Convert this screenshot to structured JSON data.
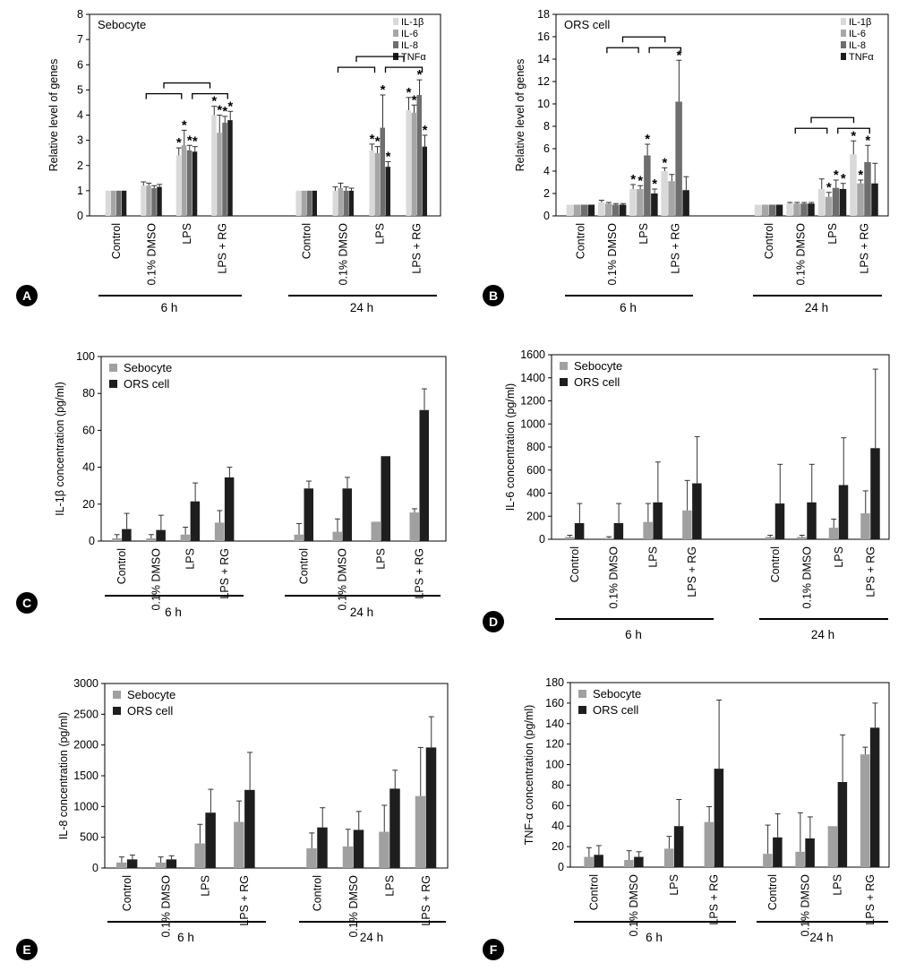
{
  "figure_colors": {
    "axis": "#000000",
    "panel_circle": "#000000",
    "panel_letter": "#ffffff"
  },
  "categories": [
    "Control",
    "0.1% DMSO",
    "LPS",
    "LPS + RG"
  ],
  "time_groups": [
    "6 h",
    "24 h"
  ],
  "chart_data": [
    {
      "panel": "A",
      "type": "bar",
      "title": "Sebocyte",
      "ylabel": "Relative level of genes",
      "ylim": [
        0,
        8
      ],
      "yticks": [
        0,
        1,
        2,
        3,
        4,
        5,
        6,
        7,
        8
      ],
      "tick_labels": [
        "0",
        "1",
        "2",
        "3",
        "4",
        "5",
        "6",
        "7",
        "8"
      ],
      "legend": [
        "IL-1β",
        "IL-6",
        "IL-8",
        "TNFα"
      ],
      "legend_position": "top-right",
      "colors": [
        "#d9d9d9",
        "#a6a6a6",
        "#6e6e6e",
        "#1e1e1e"
      ],
      "categories": [
        "Control",
        "0.1% DMSO",
        "LPS",
        "LPS + RG"
      ],
      "groups": [
        "6 h",
        "24 h"
      ],
      "series": [
        {
          "name": "IL-1β",
          "values": [
            [
              1.0,
              1.2,
              2.4,
              4.0
            ],
            [
              1.0,
              1.0,
              2.6,
              4.2
            ]
          ],
          "errors": [
            [
              0,
              0.15,
              0.3,
              0.35
            ],
            [
              0,
              0.15,
              0.25,
              0.5
            ]
          ],
          "star": [
            [
              false,
              false,
              true,
              true
            ],
            [
              false,
              false,
              true,
              true
            ]
          ]
        },
        {
          "name": "IL-6",
          "values": [
            [
              1.0,
              1.2,
              2.8,
              3.3
            ],
            [
              1.0,
              1.1,
              2.5,
              4.1
            ]
          ],
          "errors": [
            [
              0,
              0.1,
              0.6,
              0.7
            ],
            [
              0,
              0.2,
              0.25,
              0.3
            ]
          ],
          "star": [
            [
              false,
              false,
              true,
              true
            ],
            [
              false,
              false,
              true,
              true
            ]
          ]
        },
        {
          "name": "IL-8",
          "values": [
            [
              1.0,
              1.1,
              2.6,
              3.7
            ],
            [
              1.0,
              1.0,
              3.5,
              4.8
            ]
          ],
          "errors": [
            [
              0,
              0.1,
              0.2,
              0.25
            ],
            [
              0,
              0.15,
              1.3,
              0.6
            ]
          ],
          "star": [
            [
              false,
              false,
              true,
              true
            ],
            [
              false,
              false,
              true,
              true
            ]
          ]
        },
        {
          "name": "TNFα",
          "values": [
            [
              1.0,
              1.15,
              2.55,
              3.8
            ],
            [
              1.0,
              1.0,
              1.95,
              2.75
            ]
          ],
          "errors": [
            [
              0,
              0.1,
              0.2,
              0.35
            ],
            [
              0,
              0.1,
              0.2,
              0.45
            ]
          ],
          "star": [
            [
              false,
              false,
              true,
              true
            ],
            [
              false,
              false,
              true,
              true
            ]
          ]
        }
      ],
      "brackets": true
    },
    {
      "panel": "B",
      "type": "bar",
      "title": "ORS cell",
      "ylabel": "Relative level of genes",
      "ylim": [
        0,
        18
      ],
      "yticks": [
        0,
        2,
        4,
        6,
        8,
        10,
        12,
        14,
        16,
        18
      ],
      "tick_labels": [
        "0",
        "2",
        "4",
        "6",
        "8",
        "10",
        "12",
        "14",
        "16",
        "18"
      ],
      "legend": [
        "IL-1β",
        "IL-6",
        "IL-8",
        "TNFα"
      ],
      "legend_position": "top-right",
      "colors": [
        "#d9d9d9",
        "#a6a6a6",
        "#6e6e6e",
        "#1e1e1e"
      ],
      "categories": [
        "Control",
        "0.1% DMSO",
        "LPS",
        "LPS + RG"
      ],
      "groups": [
        "6 h",
        "24 h"
      ],
      "series": [
        {
          "name": "IL-1β",
          "values": [
            [
              1.0,
              1.2,
              2.4,
              4.0
            ],
            [
              1.0,
              1.1,
              2.4,
              5.5
            ]
          ],
          "errors": [
            [
              0,
              0.2,
              0.4,
              0.3
            ],
            [
              0,
              0.1,
              0.9,
              1.2
            ]
          ],
          "star": [
            [
              false,
              false,
              true,
              true
            ],
            [
              false,
              false,
              false,
              true
            ]
          ]
        },
        {
          "name": "IL-6",
          "values": [
            [
              1.0,
              1.1,
              2.4,
              3.1
            ],
            [
              1.0,
              1.1,
              1.7,
              2.9
            ]
          ],
          "errors": [
            [
              0,
              0.1,
              0.3,
              0.6
            ],
            [
              0,
              0.1,
              0.4,
              0.3
            ]
          ],
          "star": [
            [
              false,
              false,
              true,
              false
            ],
            [
              false,
              false,
              true,
              true
            ]
          ]
        },
        {
          "name": "IL-8",
          "values": [
            [
              1.0,
              1.0,
              5.4,
              10.2
            ],
            [
              1.0,
              1.1,
              2.5,
              4.8
            ]
          ],
          "errors": [
            [
              0,
              0.1,
              1.0,
              3.7
            ],
            [
              0,
              0.1,
              0.7,
              1.5
            ]
          ],
          "star": [
            [
              false,
              false,
              true,
              true
            ],
            [
              false,
              false,
              true,
              true
            ]
          ]
        },
        {
          "name": "TNFα",
          "values": [
            [
              1.0,
              1.0,
              2.0,
              2.3
            ],
            [
              1.0,
              1.1,
              2.4,
              2.9
            ]
          ],
          "errors": [
            [
              0,
              0.1,
              0.4,
              1.2
            ],
            [
              0,
              0.1,
              0.5,
              1.8
            ]
          ],
          "star": [
            [
              false,
              false,
              true,
              false
            ],
            [
              false,
              false,
              true,
              false
            ]
          ]
        }
      ],
      "brackets": true
    },
    {
      "panel": "C",
      "type": "bar",
      "ylabel": "IL-1β concentration (pg/ml)",
      "ylim": [
        0,
        100
      ],
      "yticks": [
        0,
        20,
        40,
        60,
        80,
        100
      ],
      "tick_labels": [
        "0",
        "20",
        "40",
        "60",
        "80",
        "100"
      ],
      "legend": [
        "Sebocyte",
        "ORS cell"
      ],
      "legend_position": "top-left",
      "colors": [
        "#a0a0a0",
        "#1e1e1e"
      ],
      "categories": [
        "Control",
        "0.1% DMSO",
        "LPS",
        "LPS + RG"
      ],
      "groups": [
        "6 h",
        "24 h"
      ],
      "series": [
        {
          "name": "Sebocyte",
          "values": [
            [
              1.5,
              1.5,
              3.5,
              10
            ],
            [
              3.5,
              5,
              10.5,
              15.5
            ]
          ],
          "errors": [
            [
              2,
              2,
              4,
              6.5
            ],
            [
              6,
              7,
              0,
              2
            ]
          ]
        },
        {
          "name": "ORS cell",
          "values": [
            [
              6.5,
              6,
              21.5,
              34.5
            ],
            [
              28.5,
              28.5,
              46,
              71
            ]
          ],
          "errors": [
            [
              8.5,
              8,
              10,
              5.5
            ],
            [
              4,
              6,
              0,
              11.5
            ]
          ]
        }
      ]
    },
    {
      "panel": "D",
      "type": "bar",
      "ylabel": "IL-6 concentration (pg/ml)",
      "ylim": [
        0,
        1600
      ],
      "yticks": [
        0,
        200,
        400,
        600,
        800,
        1000,
        1200,
        1400,
        1600
      ],
      "tick_labels": [
        "0",
        "200",
        "400",
        "600",
        "800",
        "1000",
        "1200",
        "1400",
        "1600"
      ],
      "legend": [
        "Sebocyte",
        "ORS cell"
      ],
      "legend_position": "top-left",
      "colors": [
        "#a0a0a0",
        "#1e1e1e"
      ],
      "categories": [
        "Control",
        "0.1% DMSO",
        "LPS",
        "LPS + RG"
      ],
      "groups": [
        "6 h",
        "24 h"
      ],
      "series": [
        {
          "name": "Sebocyte",
          "values": [
            [
              20,
              10,
              150,
              250
            ],
            [
              20,
              20,
              100,
              225
            ]
          ],
          "errors": [
            [
              15,
              12,
              160,
              260
            ],
            [
              15,
              15,
              75,
              195
            ]
          ]
        },
        {
          "name": "ORS cell",
          "values": [
            [
              140,
              140,
              320,
              485
            ],
            [
              310,
              320,
              470,
              790
            ]
          ],
          "errors": [
            [
              170,
              170,
              350,
              405
            ],
            [
              340,
              330,
              410,
              685
            ]
          ]
        }
      ]
    },
    {
      "panel": "E",
      "type": "bar",
      "ylabel": "IL-8 concentration (pg/ml)",
      "ylim": [
        0,
        3000
      ],
      "yticks": [
        0,
        500,
        1000,
        1500,
        2000,
        2500,
        3000
      ],
      "tick_labels": [
        "0",
        "500",
        "1000",
        "1500",
        "2000",
        "2500",
        "3000"
      ],
      "legend": [
        "Sebocyte",
        "ORS cell"
      ],
      "legend_position": "top-left",
      "colors": [
        "#a0a0a0",
        "#1e1e1e"
      ],
      "categories": [
        "Control",
        "0.1% DMSO",
        "LPS",
        "LPS + RG"
      ],
      "groups": [
        "6 h",
        "24 h"
      ],
      "series": [
        {
          "name": "Sebocyte",
          "values": [
            [
              90,
              90,
              400,
              750
            ],
            [
              320,
              350,
              590,
              1170
            ]
          ],
          "errors": [
            [
              90,
              90,
              310,
              340
            ],
            [
              250,
              280,
              430,
              790
            ]
          ]
        },
        {
          "name": "ORS cell",
          "values": [
            [
              140,
              140,
              900,
              1270
            ],
            [
              660,
              620,
              1290,
              1960
            ]
          ],
          "errors": [
            [
              70,
              60,
              380,
              610
            ],
            [
              320,
              300,
              300,
              500
            ]
          ]
        }
      ]
    },
    {
      "panel": "F",
      "type": "bar",
      "ylabel": "TNF-α concentration (pg/ml)",
      "ylim": [
        0,
        180
      ],
      "yticks": [
        0,
        20,
        40,
        60,
        80,
        100,
        120,
        140,
        160,
        180
      ],
      "tick_labels": [
        "0",
        "20",
        "40",
        "60",
        "80",
        "100",
        "120",
        "140",
        "160",
        "180"
      ],
      "legend": [
        "Sebocyte",
        "ORS cell"
      ],
      "legend_position": "top-left",
      "colors": [
        "#a0a0a0",
        "#1e1e1e"
      ],
      "categories": [
        "Control",
        "0.1% DMSO",
        "LPS",
        "LPS + RG"
      ],
      "groups": [
        "6 h",
        "24 h"
      ],
      "series": [
        {
          "name": "Sebocyte",
          "values": [
            [
              10,
              7,
              18,
              44
            ],
            [
              13,
              15,
              40,
              110
            ]
          ],
          "errors": [
            [
              9,
              9,
              12,
              15
            ],
            [
              28,
              38,
              0,
              7
            ]
          ]
        },
        {
          "name": "ORS cell",
          "values": [
            [
              12,
              10,
              40,
              96
            ],
            [
              29,
              28,
              83,
              136
            ]
          ],
          "errors": [
            [
              9,
              5,
              26,
              67
            ],
            [
              23,
              21,
              46,
              24
            ]
          ]
        }
      ]
    }
  ]
}
